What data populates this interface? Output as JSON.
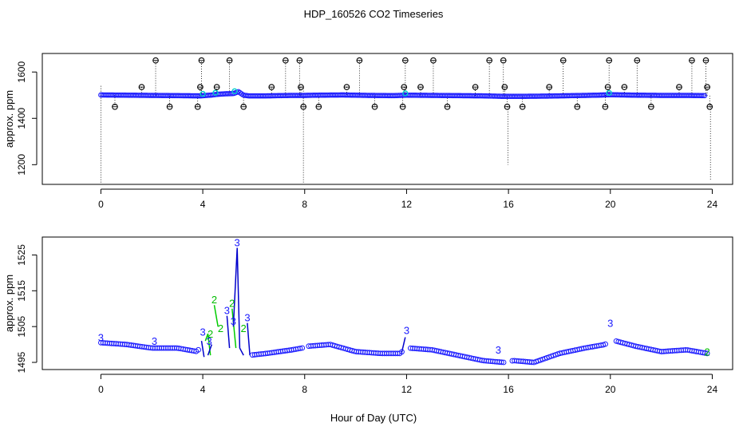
{
  "figure": {
    "title": "HDP_160526  CO2 Timeseries",
    "xlabel": "Hour of Day (UTC)"
  },
  "chart_data": [
    {
      "type": "scatter",
      "panel": "top",
      "ylabel": "approx. ppm",
      "xlim": [
        -2.3,
        24.8
      ],
      "ylim": [
        1115,
        1680
      ],
      "xticks": [
        0,
        4,
        8,
        12,
        16,
        20,
        24
      ],
      "yticks": [
        1200,
        1400,
        1600
      ],
      "xtick_labels": [
        "0",
        "4",
        "8",
        "12",
        "16",
        "20",
        "24"
      ],
      "ytick_labels": [
        "1200",
        "1400",
        "1600"
      ],
      "baseline": [
        [
          0.0,
          1501
        ],
        [
          1.0,
          1500
        ],
        [
          2.0,
          1499
        ],
        [
          3.0,
          1498
        ],
        [
          3.9,
          1497
        ],
        [
          4.3,
          1500
        ],
        [
          4.6,
          1504
        ],
        [
          4.9,
          1506
        ],
        [
          5.2,
          1507
        ],
        [
          5.4,
          1515
        ],
        [
          5.6,
          1500
        ],
        [
          5.8,
          1497
        ],
        [
          6.5,
          1497
        ],
        [
          7.5,
          1499
        ],
        [
          8.0,
          1499
        ],
        [
          8.5,
          1500
        ],
        [
          9.5,
          1501
        ],
        [
          10.5,
          1499
        ],
        [
          11.5,
          1498
        ],
        [
          12.0,
          1500
        ],
        [
          13.0,
          1499
        ],
        [
          14.0,
          1498
        ],
        [
          15.0,
          1497
        ],
        [
          15.8,
          1495
        ],
        [
          16.5,
          1495
        ],
        [
          17.5,
          1496
        ],
        [
          18.5,
          1498
        ],
        [
          19.5,
          1500
        ],
        [
          20.0,
          1502
        ],
        [
          21.0,
          1500
        ],
        [
          22.0,
          1499
        ],
        [
          23.0,
          1499
        ],
        [
          23.7,
          1498
        ]
      ],
      "outliers": [
        [
          0.55,
          1450
        ],
        [
          1.6,
          1535
        ],
        [
          2.15,
          1650
        ],
        [
          2.7,
          1450
        ],
        [
          3.8,
          1450
        ],
        [
          3.9,
          1535
        ],
        [
          3.95,
          1650
        ],
        [
          4.55,
          1535
        ],
        [
          5.05,
          1650
        ],
        [
          5.6,
          1450
        ],
        [
          6.7,
          1535
        ],
        [
          7.25,
          1650
        ],
        [
          7.8,
          1650
        ],
        [
          7.85,
          1535
        ],
        [
          7.95,
          1450
        ],
        [
          8.55,
          1450
        ],
        [
          9.65,
          1535
        ],
        [
          10.15,
          1650
        ],
        [
          10.75,
          1450
        ],
        [
          11.85,
          1450
        ],
        [
          11.9,
          1535
        ],
        [
          11.95,
          1650
        ],
        [
          12.55,
          1535
        ],
        [
          13.05,
          1650
        ],
        [
          13.6,
          1450
        ],
        [
          14.7,
          1535
        ],
        [
          15.25,
          1650
        ],
        [
          15.8,
          1650
        ],
        [
          15.85,
          1535
        ],
        [
          15.95,
          1450
        ],
        [
          16.55,
          1450
        ],
        [
          17.6,
          1535
        ],
        [
          18.15,
          1650
        ],
        [
          18.7,
          1450
        ],
        [
          19.8,
          1450
        ],
        [
          19.9,
          1535
        ],
        [
          19.95,
          1650
        ],
        [
          20.55,
          1535
        ],
        [
          21.05,
          1650
        ],
        [
          21.6,
          1450
        ],
        [
          22.7,
          1535
        ],
        [
          23.2,
          1650
        ],
        [
          23.75,
          1650
        ],
        [
          23.8,
          1535
        ],
        [
          23.9,
          1450
        ]
      ],
      "drops": [
        [
          0.0,
          1540,
          1115
        ],
        [
          7.95,
          1540,
          1115
        ],
        [
          15.98,
          1450,
          1200
        ],
        [
          23.93,
          1460,
          1130
        ]
      ]
    },
    {
      "type": "line",
      "panel": "bottom",
      "ylabel": "approx. ppm",
      "xlim": [
        -2.3,
        24.8
      ],
      "ylim": [
        1493,
        1530
      ],
      "xticks": [
        0,
        4,
        8,
        12,
        16,
        20,
        24
      ],
      "yticks": [
        1495,
        1505,
        1515,
        1525
      ],
      "xtick_labels": [
        "0",
        "4",
        "8",
        "12",
        "16",
        "20",
        "24"
      ],
      "ytick_labels": [
        "1495",
        "1505",
        "1515",
        "1525"
      ],
      "markers": {
        "series2": "2",
        "series3": "3"
      },
      "series": [
        {
          "color": "#00cc00",
          "points": [
            [
              0.0,
              1500.5
            ],
            [
              1.0,
              1500
            ],
            [
              2.0,
              1499
            ],
            [
              3.0,
              1498.5
            ],
            [
              3.8,
              1498
            ],
            [
              4.1,
              1501
            ],
            [
              4.2,
              1503
            ],
            [
              4.3,
              1497
            ],
            [
              4.45,
              1511
            ],
            [
              4.6,
              1505
            ],
            [
              4.8,
              1506
            ],
            [
              5.0,
              1502
            ],
            [
              5.15,
              1510
            ],
            [
              5.3,
              1499
            ],
            [
              5.6,
              1503
            ],
            [
              5.8,
              1497
            ],
            [
              6.5,
              1497.5
            ],
            [
              7.5,
              1498.5
            ],
            [
              7.9,
              1499
            ],
            [
              8.1,
              1499
            ],
            [
              9.0,
              1500
            ],
            [
              10.0,
              1497
            ],
            [
              11.0,
              1496.5
            ],
            [
              11.9,
              1496.5
            ],
            [
              12.1,
              1499
            ],
            [
              13.0,
              1498
            ],
            [
              14.0,
              1497
            ],
            [
              15.0,
              1495.5
            ],
            [
              15.8,
              1495
            ],
            [
              16.2,
              1495.5
            ],
            [
              17.0,
              1495
            ],
            [
              18.0,
              1498
            ],
            [
              19.0,
              1499
            ],
            [
              19.9,
              1500.5
            ],
            [
              20.1,
              1501
            ],
            [
              21.0,
              1499.5
            ],
            [
              22.0,
              1498
            ],
            [
              23.0,
              1498.5
            ],
            [
              23.8,
              1497
            ]
          ]
        },
        {
          "color": "#0000cc",
          "points": [
            [
              0.0,
              1500.5
            ],
            [
              1.0,
              1500
            ],
            [
              2.0,
              1499
            ],
            [
              3.0,
              1499
            ],
            [
              3.8,
              1498
            ],
            [
              3.95,
              1501
            ],
            [
              4.05,
              1496.5
            ],
            [
              4.2,
              1497
            ],
            [
              4.35,
              1500
            ],
            [
              4.55,
              1498
            ],
            [
              4.75,
              1502
            ],
            [
              4.95,
              1508
            ],
            [
              5.05,
              1499
            ],
            [
              5.2,
              1505
            ],
            [
              5.35,
              1527
            ],
            [
              5.45,
              1499
            ],
            [
              5.6,
              1497
            ],
            [
              5.75,
              1506
            ],
            [
              5.85,
              1497
            ],
            [
              6.5,
              1497.5
            ],
            [
              7.5,
              1498.5
            ],
            [
              7.9,
              1499
            ],
            [
              8.1,
              1499.5
            ],
            [
              9.0,
              1500
            ],
            [
              10.0,
              1498
            ],
            [
              11.0,
              1497.5
            ],
            [
              11.8,
              1497.5
            ],
            [
              11.95,
              1502
            ],
            [
              12.1,
              1499
            ],
            [
              13.0,
              1498.5
            ],
            [
              14.0,
              1497
            ],
            [
              15.0,
              1495.5
            ],
            [
              15.8,
              1495
            ],
            [
              16.2,
              1495.5
            ],
            [
              17.0,
              1495
            ],
            [
              18.0,
              1497.5
            ],
            [
              19.0,
              1499
            ],
            [
              19.8,
              1500
            ],
            [
              20.0,
              1504
            ],
            [
              20.2,
              1501
            ],
            [
              21.0,
              1499.5
            ],
            [
              22.0,
              1498
            ],
            [
              23.0,
              1498.5
            ],
            [
              23.8,
              1497.5
            ]
          ]
        }
      ],
      "labels3": [
        [
          0.0,
          1500.5
        ],
        [
          2.1,
          1499.5
        ],
        [
          4.0,
          1502
        ],
        [
          4.25,
          1499.5
        ],
        [
          4.95,
          1508
        ],
        [
          5.2,
          1505
        ],
        [
          5.35,
          1527
        ],
        [
          5.75,
          1506
        ],
        [
          12.0,
          1502.5
        ],
        [
          15.6,
          1497
        ],
        [
          20.0,
          1504.5
        ]
      ],
      "labels2": [
        [
          4.45,
          1511
        ],
        [
          4.3,
          1501.5
        ],
        [
          4.7,
          1503
        ],
        [
          5.15,
          1510
        ],
        [
          5.6,
          1503
        ],
        [
          23.8,
          1496.5
        ]
      ]
    }
  ]
}
